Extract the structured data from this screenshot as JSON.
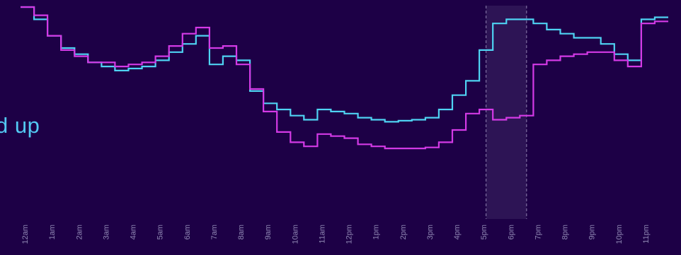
{
  "fragment_text": "d up",
  "chart_data": {
    "type": "line",
    "step": true,
    "title": "",
    "xlabel": "",
    "ylabel": "",
    "x_tick_labels": [
      "12am",
      "1am",
      "2am",
      "3am",
      "4am",
      "5am",
      "6am",
      "7am",
      "8am",
      "9am",
      "10am",
      "11am",
      "12pm",
      "1pm",
      "2pm",
      "3pm",
      "4pm",
      "5pm",
      "6pm",
      "7pm",
      "8pm",
      "9pm",
      "10pm",
      "11pm"
    ],
    "ylim": [
      0,
      100
    ],
    "grid": false,
    "legend": "none",
    "highlight_range": {
      "start_hour": 17.25,
      "end_hour": 18.75
    },
    "colors": {
      "background": "#1d0046",
      "series_a": "#4fd3f3",
      "series_b": "#d43ae6",
      "highlight_fill": "#2d1455",
      "highlight_border": "#8f83b0",
      "tick_label": "#8e86b2",
      "text": "#53c9f3"
    },
    "series": [
      {
        "key": "a",
        "points": [
          [
            0,
            100
          ],
          [
            0.5,
            94
          ],
          [
            1,
            86
          ],
          [
            1.5,
            80
          ],
          [
            2,
            77
          ],
          [
            2.5,
            73
          ],
          [
            3,
            71
          ],
          [
            3.5,
            69
          ],
          [
            4,
            70
          ],
          [
            4.5,
            71
          ],
          [
            5,
            74
          ],
          [
            5.5,
            78
          ],
          [
            6,
            82
          ],
          [
            6.5,
            86
          ],
          [
            7,
            72
          ],
          [
            7.5,
            76
          ],
          [
            8,
            74
          ],
          [
            8.5,
            59
          ],
          [
            9,
            53
          ],
          [
            9.5,
            50
          ],
          [
            10,
            47
          ],
          [
            10.5,
            45
          ],
          [
            11,
            50
          ],
          [
            11.5,
            49
          ],
          [
            12,
            48
          ],
          [
            12.5,
            46
          ],
          [
            13,
            45
          ],
          [
            13.5,
            44
          ],
          [
            14,
            44.5
          ],
          [
            14.5,
            45
          ],
          [
            15,
            46
          ],
          [
            15.5,
            50
          ],
          [
            16,
            57
          ],
          [
            16.5,
            64
          ],
          [
            17,
            79
          ],
          [
            17.5,
            92
          ],
          [
            18,
            94
          ],
          [
            18.5,
            94
          ],
          [
            19,
            92
          ],
          [
            19.5,
            89
          ],
          [
            20,
            87
          ],
          [
            20.5,
            85
          ],
          [
            21,
            85
          ],
          [
            21.5,
            82
          ],
          [
            22,
            77
          ],
          [
            22.5,
            74
          ],
          [
            23,
            94
          ],
          [
            23.5,
            95
          ],
          [
            24,
            95
          ]
        ]
      },
      {
        "key": "b",
        "points": [
          [
            0,
            100
          ],
          [
            0.5,
            96
          ],
          [
            1,
            86
          ],
          [
            1.5,
            79
          ],
          [
            2,
            76
          ],
          [
            2.5,
            73
          ],
          [
            3,
            73
          ],
          [
            3.5,
            71
          ],
          [
            4,
            72
          ],
          [
            4.5,
            73
          ],
          [
            5,
            76
          ],
          [
            5.5,
            81
          ],
          [
            6,
            87
          ],
          [
            6.5,
            90
          ],
          [
            7,
            80
          ],
          [
            7.5,
            81
          ],
          [
            8,
            72
          ],
          [
            8.5,
            60
          ],
          [
            9,
            49
          ],
          [
            9.5,
            39
          ],
          [
            10,
            34
          ],
          [
            10.5,
            32
          ],
          [
            11,
            38
          ],
          [
            11.5,
            37
          ],
          [
            12,
            36
          ],
          [
            12.5,
            33
          ],
          [
            13,
            32
          ],
          [
            13.5,
            31
          ],
          [
            14,
            31
          ],
          [
            14.5,
            31
          ],
          [
            15,
            31.5
          ],
          [
            15.5,
            34
          ],
          [
            16,
            40
          ],
          [
            16.5,
            48
          ],
          [
            17,
            50
          ],
          [
            17.5,
            45
          ],
          [
            18,
            46
          ],
          [
            18.5,
            47
          ],
          [
            19,
            72
          ],
          [
            19.5,
            74
          ],
          [
            20,
            76
          ],
          [
            20.5,
            77
          ],
          [
            21,
            78
          ],
          [
            21.5,
            78
          ],
          [
            22,
            74
          ],
          [
            22.5,
            71
          ],
          [
            23,
            92
          ],
          [
            23.5,
            93
          ],
          [
            24,
            93
          ]
        ]
      }
    ]
  }
}
